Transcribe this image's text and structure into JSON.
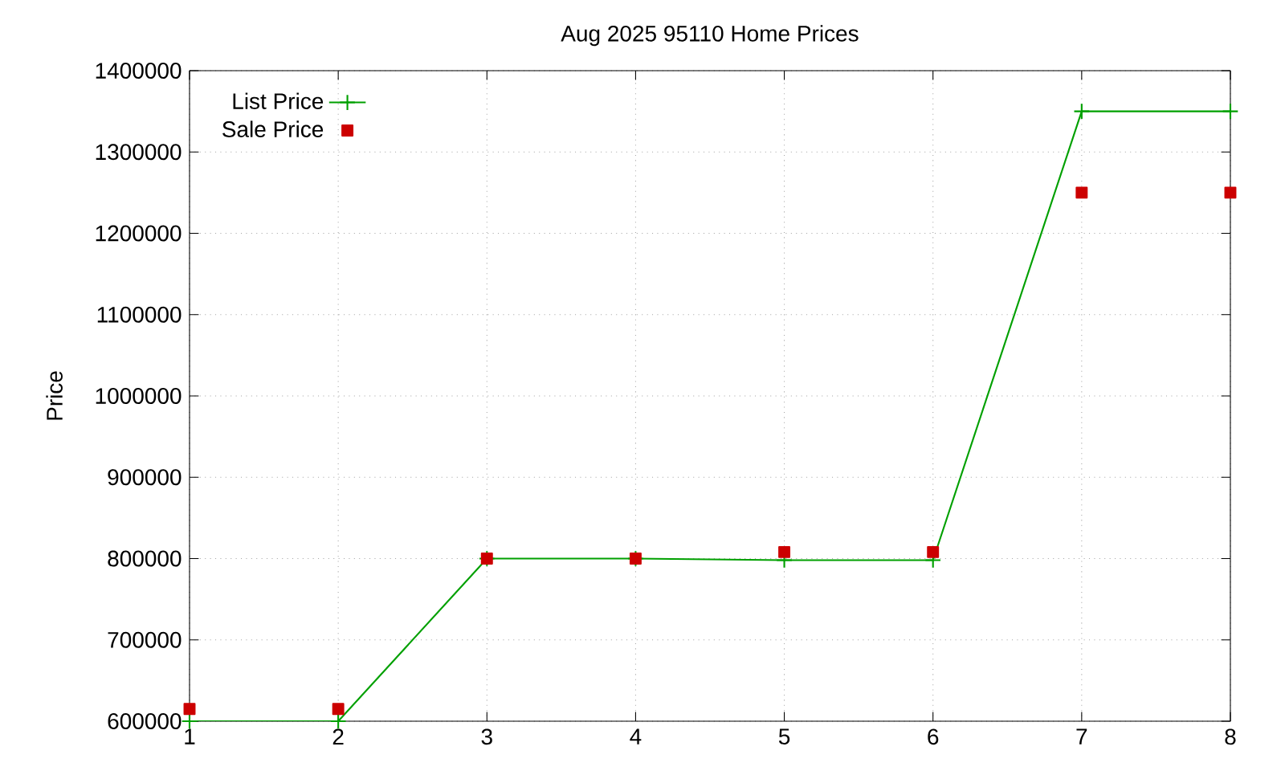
{
  "chart_data": {
    "type": "line",
    "title": "Aug 2025 95110 Home Prices",
    "ylabel": "Price",
    "x": [
      1,
      2,
      3,
      4,
      5,
      6,
      7,
      8
    ],
    "series": [
      {
        "name": "List Price",
        "color": "#00a000",
        "marker": "cross",
        "values": [
          600000,
          600000,
          800000,
          800000,
          798000,
          798000,
          1350000,
          1350000
        ]
      },
      {
        "name": "Sale Price",
        "type": "scatter",
        "color": "#cc0000",
        "marker": "square",
        "values": [
          615000,
          615000,
          800000,
          800000,
          808000,
          808000,
          1250000,
          1250000
        ]
      }
    ],
    "xlim": [
      1,
      8
    ],
    "xticks": [
      1,
      2,
      3,
      4,
      5,
      6,
      7,
      8
    ],
    "ylim": [
      600000,
      1400000
    ],
    "yticks": [
      600000,
      700000,
      800000,
      900000,
      1000000,
      1100000,
      1200000,
      1300000,
      1400000
    ],
    "grid": true,
    "legend": "top left"
  }
}
